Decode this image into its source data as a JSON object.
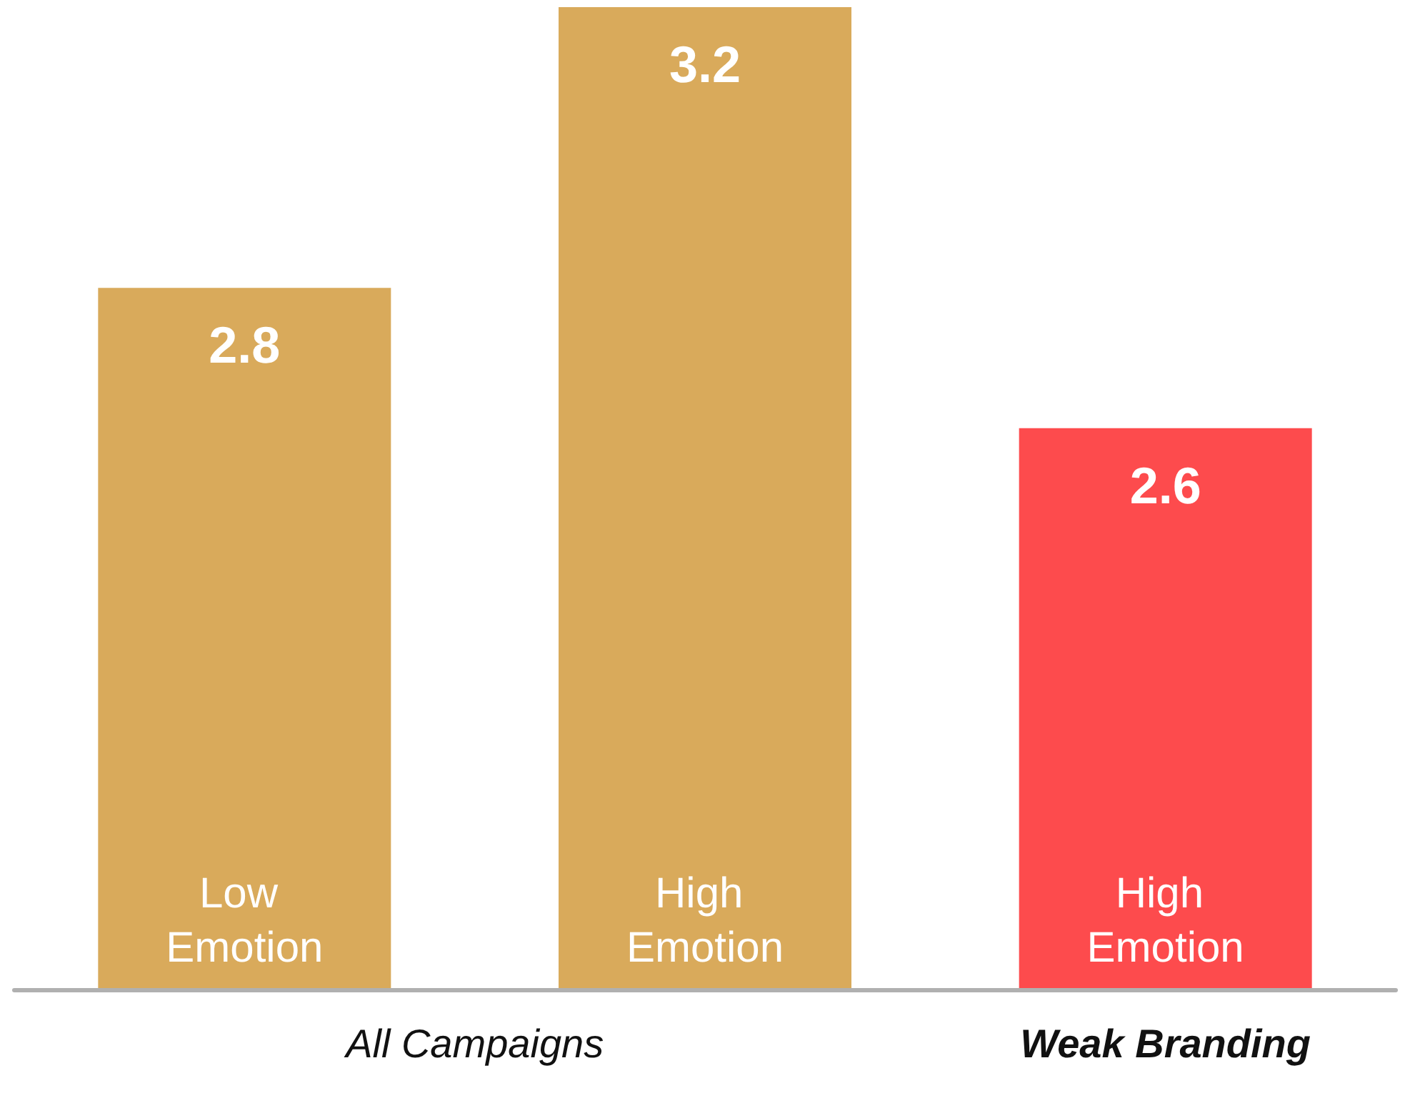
{
  "chart_data": {
    "type": "bar",
    "categories": [
      "Low Emotion",
      "High Emotion",
      "High Emotion"
    ],
    "values": [
      2.8,
      3.2,
      2.6
    ],
    "colors": [
      "#d9aa5b",
      "#d9aa5b",
      "#fd4b4d"
    ],
    "ylim": [
      1.8,
      3.2
    ],
    "data_labels": true,
    "annotations": [
      "All Campaigns",
      "Weak Branding"
    ]
  }
}
